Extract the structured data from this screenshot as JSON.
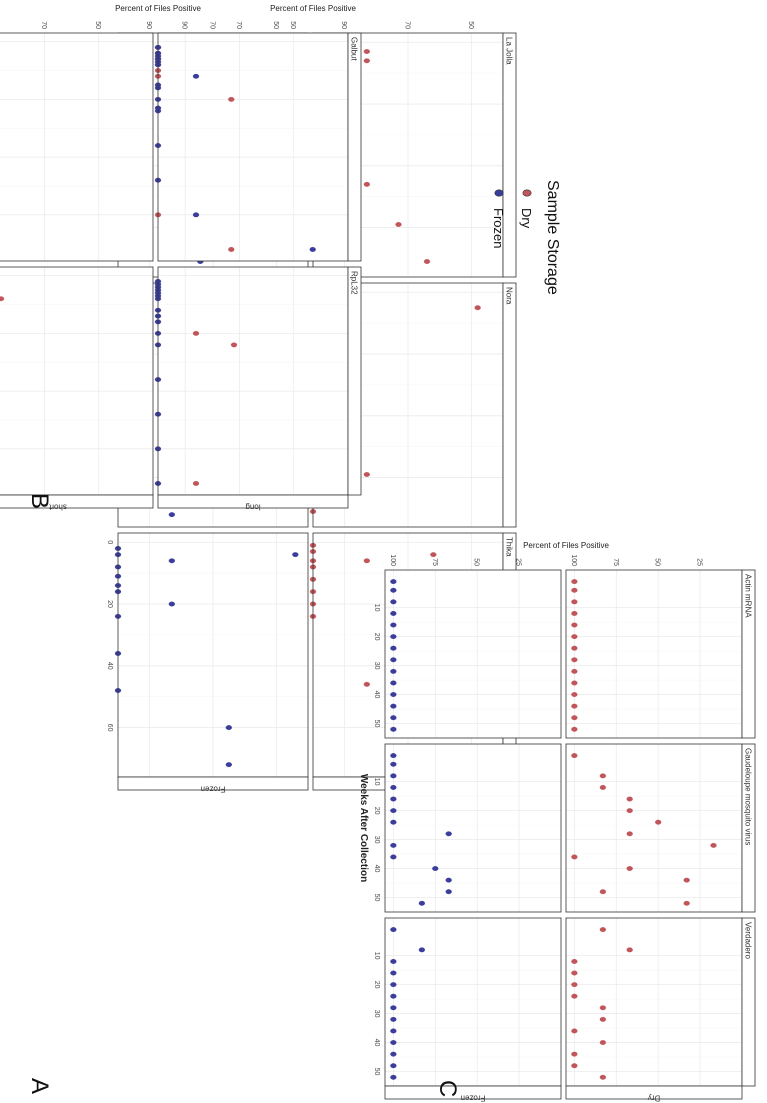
{
  "figure": {
    "colors": {
      "Dry": "#c0555a",
      "Frozen": "#3a3d9c"
    },
    "legend": {
      "title": "Sample Storage",
      "items": [
        "Dry",
        "Frozen"
      ],
      "placement": "right"
    }
  },
  "chart_data": [
    {
      "panel": "A",
      "type": "scatter",
      "xlabel": "Weeks After Collection",
      "ylabel": "Percent of Files Positive",
      "xlim": [
        -3,
        76
      ],
      "ylim": [
        100,
        40
      ],
      "xticks": [
        0,
        20,
        40,
        60
      ],
      "yticks": [
        90,
        70,
        50
      ],
      "col_facets": [
        "La Jolla",
        "Nora",
        "Thika"
      ],
      "row_facets": [
        "Dry",
        "Frozen"
      ],
      "grid": true,
      "series": [
        {
          "facet_col": "La Jolla",
          "facet_row": "Dry",
          "name": "Dry",
          "x": [
            1,
            3,
            6,
            8,
            10,
            12,
            3,
            6,
            36,
            46,
            59,
            71
          ],
          "y": [
            100,
            100,
            100,
            100,
            100,
            100,
            83,
            83,
            100,
            83,
            73,
            64
          ]
        },
        {
          "facet_col": "La Jolla",
          "facet_row": "Frozen",
          "name": "Frozen",
          "x": [
            2,
            4,
            6,
            13,
            16,
            20,
            25,
            35,
            47,
            4,
            60,
            71
          ],
          "y": [
            100,
            100,
            100,
            100,
            100,
            100,
            100,
            100,
            100,
            80,
            74,
            74
          ]
        },
        {
          "facet_col": "Nora",
          "facet_row": "Dry",
          "name": "Dry",
          "x": [
            1,
            3,
            6,
            8,
            10,
            12,
            15,
            18,
            24,
            36,
            46,
            71,
            59,
            5
          ],
          "y": [
            100,
            100,
            100,
            100,
            100,
            100,
            100,
            100,
            100,
            100,
            100,
            100,
            83,
            48
          ]
        },
        {
          "facet_col": "Nora",
          "facet_row": "Frozen",
          "name": "Frozen",
          "x": [
            1,
            2,
            3,
            4,
            6,
            8,
            10,
            12,
            16,
            20,
            24,
            36,
            48,
            60,
            72
          ],
          "y": [
            100,
            100,
            100,
            100,
            100,
            100,
            100,
            100,
            100,
            100,
            100,
            100,
            100,
            83,
            83
          ]
        },
        {
          "facet_col": "Thika",
          "facet_row": "Dry",
          "name": "Dry",
          "x": [
            1,
            3,
            6,
            8,
            12,
            16,
            20,
            24,
            6,
            4,
            36,
            46,
            60,
            72
          ],
          "y": [
            100,
            100,
            100,
            100,
            100,
            100,
            100,
            100,
            83,
            62,
            72,
            83,
            72,
            62
          ]
        },
        {
          "facet_col": "Thika",
          "facet_row": "Frozen",
          "name": "Frozen",
          "x": [
            2,
            4,
            8,
            11,
            14,
            16,
            24,
            36,
            48,
            6,
            20,
            4,
            60,
            72
          ],
          "y": [
            100,
            100,
            100,
            100,
            100,
            100,
            100,
            100,
            100,
            83,
            83,
            44,
            65,
            65
          ]
        }
      ]
    },
    {
      "panel": "B",
      "type": "scatter",
      "xlabel": "Weeks After Collection",
      "ylabel": "Percent of Files Positive",
      "xlim": [
        -3,
        76
      ],
      "ylim": [
        100,
        30
      ],
      "xticks": [
        0,
        20,
        40,
        60
      ],
      "yticks": [
        90,
        70,
        50
      ],
      "col_facets": [
        "Galbut",
        "RpL32"
      ],
      "row_facets": [
        "long",
        "short"
      ],
      "grid": true,
      "series": [
        {
          "facet_col": "Galbut",
          "facet_row": "long",
          "name": "Dry",
          "x": [
            2,
            4,
            6,
            8,
            10,
            12,
            20,
            60,
            72
          ],
          "y": [
            100,
            100,
            100,
            100,
            100,
            100,
            73,
            100,
            73
          ]
        },
        {
          "facet_col": "Galbut",
          "facet_row": "long",
          "name": "Frozen",
          "x": [
            2,
            4,
            5,
            6,
            7,
            8,
            12,
            15,
            16,
            20,
            23,
            24,
            36,
            48,
            60,
            72
          ],
          "y": [
            100,
            100,
            100,
            100,
            100,
            100,
            86,
            100,
            100,
            100,
            100,
            100,
            100,
            100,
            86,
            43
          ]
        },
        {
          "facet_col": "Galbut",
          "facet_row": "short",
          "name": "Dry",
          "x": [
            1,
            2,
            4,
            6,
            8,
            12,
            16,
            20,
            24,
            36,
            48,
            60,
            72
          ],
          "y": [
            100,
            100,
            100,
            100,
            100,
            100,
            100,
            100,
            100,
            100,
            100,
            100,
            100
          ]
        },
        {
          "facet_col": "RpL32",
          "facet_row": "long",
          "name": "Dry",
          "x": [
            20,
            24,
            72
          ],
          "y": [
            86,
            72,
            86
          ]
        },
        {
          "facet_col": "RpL32",
          "facet_row": "long",
          "name": "Frozen",
          "x": [
            2,
            3,
            4,
            5,
            6,
            7,
            8,
            12,
            14,
            16,
            20,
            24,
            36,
            48,
            60,
            72
          ],
          "y": [
            100,
            100,
            100,
            100,
            100,
            100,
            100,
            100,
            100,
            100,
            100,
            100,
            100,
            100,
            100,
            100
          ]
        },
        {
          "facet_col": "RpL32",
          "facet_row": "short",
          "name": "Dry",
          "x": [
            2,
            4,
            6,
            8,
            12,
            16,
            20,
            24,
            36,
            48,
            60,
            72
          ],
          "y": [
            100,
            100,
            100,
            86,
            100,
            100,
            100,
            100,
            100,
            100,
            100,
            100
          ]
        }
      ]
    },
    {
      "panel": "C",
      "type": "scatter",
      "xlabel": "Weeks After Collection",
      "ylabel": "Percent of Files Positive",
      "xlim": [
        -3,
        55
      ],
      "ylim": [
        105,
        0
      ],
      "xticks": [
        10,
        20,
        30,
        40,
        50
      ],
      "yticks": [
        100,
        75,
        50,
        25
      ],
      "col_facets": [
        "Actin mRNA",
        "Gaudeloupe mosquito virus",
        "Verdadero"
      ],
      "row_facets": [
        "Dry",
        "Frozen"
      ],
      "grid": true,
      "series": [
        {
          "facet_col": "Actin mRNA",
          "facet_row": "Dry",
          "name": "Dry",
          "x": [
            1,
            4,
            8,
            12,
            16,
            20,
            24,
            28,
            32,
            36,
            40,
            44,
            48,
            52
          ],
          "y": [
            100,
            100,
            100,
            100,
            100,
            100,
            100,
            100,
            100,
            100,
            100,
            100,
            100,
            100
          ]
        },
        {
          "facet_col": "Actin mRNA",
          "facet_row": "Frozen",
          "name": "Frozen",
          "x": [
            1,
            4,
            8,
            12,
            16,
            20,
            24,
            28,
            32,
            36,
            40,
            44,
            48,
            52
          ],
          "y": [
            100,
            100,
            100,
            100,
            100,
            100,
            100,
            100,
            100,
            100,
            100,
            100,
            100,
            100
          ]
        },
        {
          "facet_col": "Gaudeloupe mosquito virus",
          "facet_row": "Dry",
          "name": "Dry",
          "x": [
            1,
            8,
            12,
            16,
            20,
            24,
            28,
            32,
            36,
            40,
            44,
            48,
            52
          ],
          "y": [
            100,
            83,
            83,
            67,
            67,
            50,
            67,
            17,
            100,
            67,
            33,
            83,
            33
          ]
        },
        {
          "facet_col": "Gaudeloupe mosquito virus",
          "facet_row": "Frozen",
          "name": "Frozen",
          "x": [
            1,
            4,
            8,
            12,
            16,
            20,
            24,
            28,
            32,
            36,
            40,
            44,
            48,
            52
          ],
          "y": [
            100,
            100,
            100,
            100,
            100,
            100,
            100,
            67,
            100,
            100,
            75,
            67,
            67,
            83
          ]
        },
        {
          "facet_col": "Verdadero",
          "facet_row": "Dry",
          "name": "Dry",
          "x": [
            1,
            8,
            12,
            16,
            20,
            24,
            28,
            32,
            36,
            40,
            44,
            48,
            52
          ],
          "y": [
            83,
            67,
            100,
            100,
            100,
            100,
            83,
            83,
            100,
            83,
            100,
            100,
            83
          ]
        },
        {
          "facet_col": "Verdadero",
          "facet_row": "Frozen",
          "name": "Frozen",
          "x": [
            1,
            8,
            12,
            16,
            20,
            24,
            28,
            32,
            36,
            40,
            44,
            48,
            52
          ],
          "y": [
            100,
            83,
            100,
            100,
            100,
            100,
            100,
            100,
            100,
            100,
            100,
            100,
            100
          ]
        }
      ]
    }
  ]
}
